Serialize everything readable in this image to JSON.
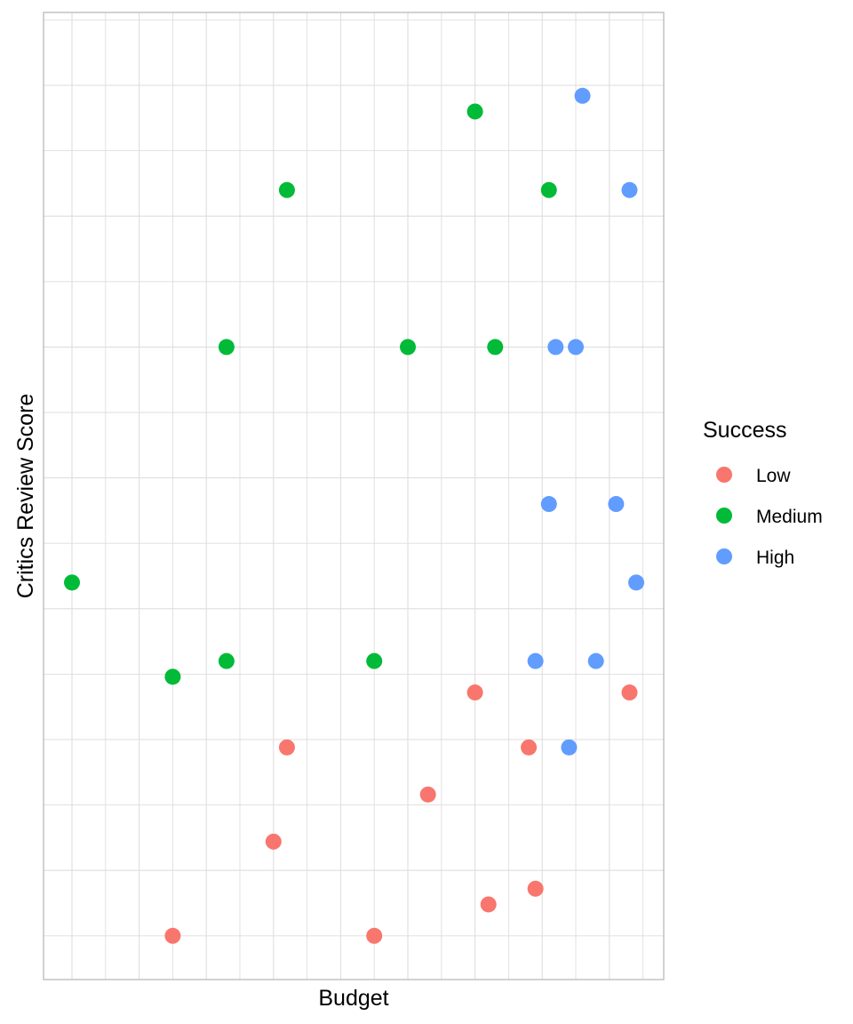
{
  "chart_data": {
    "type": "scatter",
    "title": "",
    "xlabel": "Budget",
    "ylabel": "Critics Review Score",
    "x_ticks_labeled": false,
    "y_ticks_labeled": false,
    "grid": true,
    "xlim": [
      -0.45,
      8.8
    ],
    "ylim": [
      0.3,
      7.64
    ],
    "legend": {
      "title": "Success",
      "placement": "right",
      "entries": [
        "Low",
        "Medium",
        "High"
      ]
    },
    "colors": {
      "Low": "#F8766D",
      "Medium": "#00BA38",
      "High": "#619CFF"
    },
    "series": [
      {
        "name": "Low",
        "points": [
          {
            "x": 1.5,
            "y": 0.5
          },
          {
            "x": 4.5,
            "y": 0.5
          },
          {
            "x": 6.2,
            "y": 0.74
          },
          {
            "x": 3.0,
            "y": 1.22
          },
          {
            "x": 6.9,
            "y": 0.86
          },
          {
            "x": 5.3,
            "y": 1.58
          },
          {
            "x": 3.2,
            "y": 1.94
          },
          {
            "x": 6.8,
            "y": 1.94
          },
          {
            "x": 6.0,
            "y": 2.36
          },
          {
            "x": 8.3,
            "y": 2.36
          }
        ]
      },
      {
        "name": "Medium",
        "points": [
          {
            "x": 0.0,
            "y": 3.2
          },
          {
            "x": 1.5,
            "y": 2.48
          },
          {
            "x": 2.3,
            "y": 2.6
          },
          {
            "x": 4.5,
            "y": 2.6
          },
          {
            "x": 2.3,
            "y": 5.0
          },
          {
            "x": 5.0,
            "y": 5.0
          },
          {
            "x": 6.3,
            "y": 5.0
          },
          {
            "x": 3.2,
            "y": 6.2
          },
          {
            "x": 7.1,
            "y": 6.2
          },
          {
            "x": 6.0,
            "y": 6.8
          }
        ]
      },
      {
        "name": "High",
        "points": [
          {
            "x": 7.6,
            "y": 6.92
          },
          {
            "x": 8.3,
            "y": 6.2
          },
          {
            "x": 7.2,
            "y": 5.0
          },
          {
            "x": 7.5,
            "y": 5.0
          },
          {
            "x": 7.1,
            "y": 3.8
          },
          {
            "x": 8.1,
            "y": 3.8
          },
          {
            "x": 8.4,
            "y": 3.2
          },
          {
            "x": 6.9,
            "y": 2.6
          },
          {
            "x": 7.8,
            "y": 2.6
          },
          {
            "x": 7.4,
            "y": 1.94
          }
        ]
      }
    ]
  }
}
